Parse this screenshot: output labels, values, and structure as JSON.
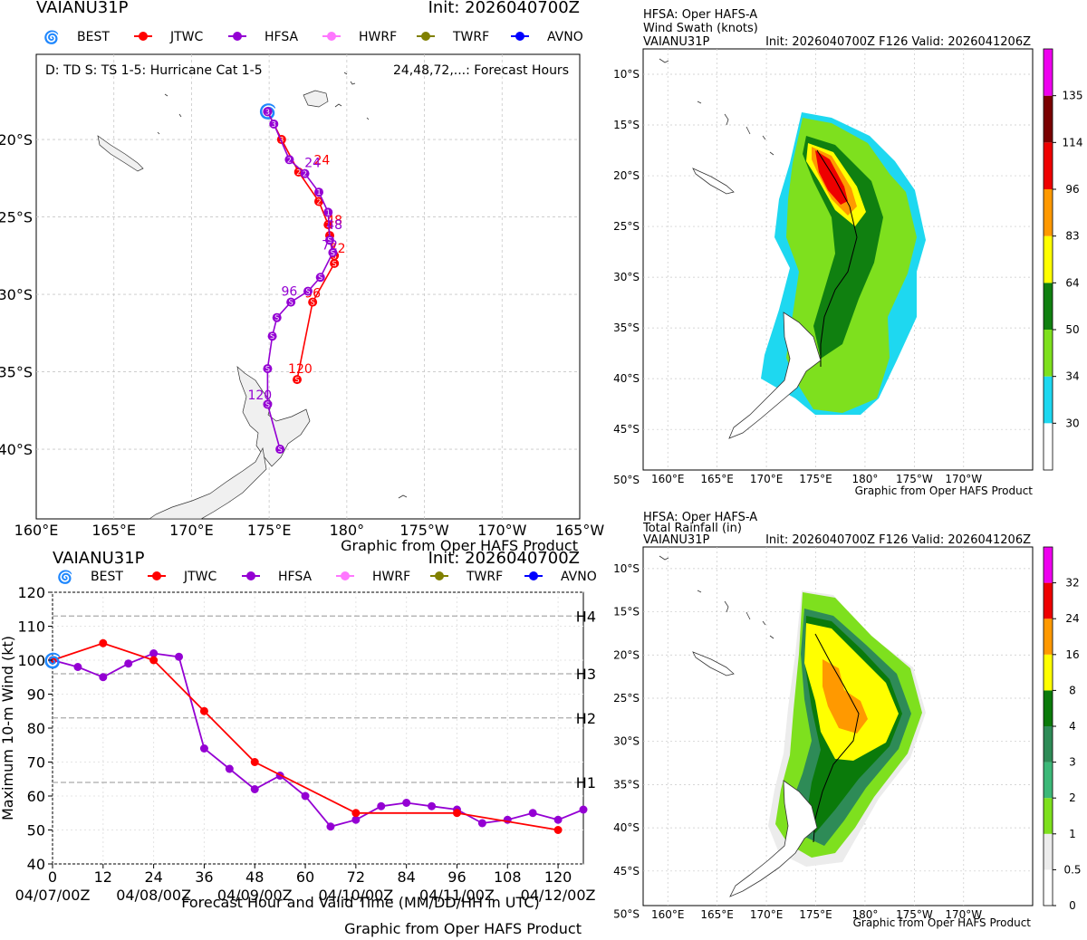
{
  "colors": {
    "BEST": "#000000",
    "JTWC": "#ff0000",
    "HFSA": "#9400d3",
    "HWRF": "#ff77ff",
    "TWRF": "#808000",
    "AVNO": "#0000ff",
    "land": "#f0f0f0",
    "grid": "#c8c8c8"
  },
  "legend_models": [
    "BEST",
    "JTWC",
    "HFSA",
    "HWRF",
    "TWRF",
    "AVNO"
  ],
  "track_panel": {
    "storm": "VAIANU31P",
    "init": "Init: 2026040700Z",
    "key_left": "D: TD  S: TS  1-5: Hurricane Cat 1-5",
    "key_right": "24,48,72,...: Forecast Hours",
    "credit": "Graphic from Oper HAFS Product",
    "lon_ticks": [
      "160°E",
      "165°E",
      "170°E",
      "175°E",
      "180°",
      "175°W",
      "170°W",
      "165°W"
    ],
    "lat_ticks": [
      "20°S",
      "25°S",
      "30°S",
      "35°S",
      "40°S"
    ]
  },
  "intensity_panel": {
    "storm": "VAIANU31P",
    "init": "Init: 2026040700Z",
    "ylabel": "Maximum 10-m Wind (kt)",
    "xlabel": "Forecast Hour and Valid Time (MM/DD/HH in UTC)",
    "credit": "Graphic from Oper HAFS Product",
    "date_labels": [
      "04/07/00Z",
      "04/08/00Z",
      "04/09/00Z",
      "04/10/00Z",
      "04/11/00Z",
      "04/12/00Z"
    ],
    "cat_labels": [
      "H1",
      "H2",
      "H3",
      "H4"
    ]
  },
  "swath_panel": {
    "line1": "HFSA: Oper HAFS-A",
    "line2": "Wind Swath (knots)",
    "storm": "VAIANU31P",
    "init": "Init: 2026040700Z F126 Valid: 2026041206Z",
    "credit": "Graphic from Oper HAFS Product",
    "lon_ticks": [
      "160°E",
      "165°E",
      "170°E",
      "175°E",
      "180°",
      "175°W",
      "170°W"
    ],
    "lat_ticks": [
      "10°S",
      "15°S",
      "20°S",
      "25°S",
      "30°S",
      "35°S",
      "40°S",
      "45°S",
      "50°S"
    ],
    "colorbar_labels": [
      "30",
      "34",
      "50",
      "64",
      "83",
      "96",
      "114",
      "135"
    ]
  },
  "rain_panel": {
    "line1": "HFSA: Oper HAFS-A",
    "line2": "Total Rainfall (in)",
    "storm": "VAIANU31P",
    "init": "Init: 2026040700Z F126 Valid: 2026041206Z",
    "credit": "Graphic from Oper HAFS Product",
    "lon_ticks": [
      "160°E",
      "165°E",
      "170°E",
      "175°E",
      "180°",
      "175°W",
      "170°W"
    ],
    "lat_ticks": [
      "10°S",
      "15°S",
      "20°S",
      "25°S",
      "30°S",
      "35°S",
      "40°S",
      "45°S",
      "50°S"
    ],
    "colorbar_labels": [
      "0",
      "0.5",
      "1",
      "2",
      "3",
      "4",
      "8",
      "16",
      "24",
      "32"
    ]
  },
  "chart_data": [
    {
      "type": "map-track",
      "title": "VAIANU31P",
      "subtitle": "Init: 2026040700Z",
      "xlim_lon_east": [
        160,
        195
      ],
      "ylim_lat": [
        -44.5,
        -14.5
      ],
      "series": [
        {
          "name": "BEST",
          "points": [
            [
              174.9,
              -18.2,
              "hurricane-symbol"
            ]
          ]
        },
        {
          "name": "JTWC",
          "points": [
            [
              174.9,
              -18.2,
              "3"
            ],
            [
              175.8,
              -20.0,
              "3"
            ],
            [
              176.9,
              -22.1,
              "2"
            ],
            [
              178.2,
              -24.0,
              "2"
            ],
            [
              178.8,
              -25.5,
              "1"
            ],
            [
              178.9,
              -26.2,
              "1"
            ],
            [
              179.2,
              -27.5,
              "S"
            ],
            [
              179.2,
              -28.0,
              "S"
            ],
            [
              177.8,
              -30.5,
              "S"
            ],
            [
              176.8,
              -35.5,
              "S"
            ]
          ],
          "hour_labels": [
            {
              "lon": 178.4,
              "lat": -21.3,
              "text": "24"
            },
            {
              "lon": 179.2,
              "lat": -25.2,
              "text": "48"
            },
            {
              "lon": 179.4,
              "lat": -27.0,
              "text": "72"
            },
            {
              "lon": 177.8,
              "lat": -29.9,
              "text": "96"
            },
            {
              "lon": 177.0,
              "lat": -34.8,
              "text": "120"
            }
          ]
        },
        {
          "name": "HFSA",
          "points": [
            [
              174.9,
              -18.2,
              "3"
            ],
            [
              175.3,
              -19.0,
              "3"
            ],
            [
              176.3,
              -21.3,
              "2"
            ],
            [
              177.3,
              -22.2,
              "2"
            ],
            [
              178.2,
              -23.4,
              "1"
            ],
            [
              178.8,
              -24.7,
              "1"
            ],
            [
              178.9,
              -26.5,
              "S"
            ],
            [
              179.1,
              -27.3,
              "S"
            ],
            [
              178.3,
              -28.9,
              "S"
            ],
            [
              177.5,
              -29.8,
              "S"
            ],
            [
              176.4,
              -30.5,
              "S"
            ],
            [
              175.5,
              -31.5,
              "S"
            ],
            [
              175.2,
              -32.7,
              "S"
            ],
            [
              174.9,
              -34.8,
              "S"
            ],
            [
              174.9,
              -37.1,
              "S"
            ],
            [
              175.7,
              -40.0,
              "S"
            ]
          ],
          "hour_labels": [
            {
              "lon": 177.8,
              "lat": -21.5,
              "text": "24"
            },
            {
              "lon": 179.2,
              "lat": -25.5,
              "text": "48"
            },
            {
              "lon": 178.9,
              "lat": -26.8,
              "text": "72"
            },
            {
              "lon": 176.3,
              "lat": -29.8,
              "text": "96"
            },
            {
              "lon": 174.4,
              "lat": -36.5,
              "text": "120"
            }
          ]
        }
      ]
    },
    {
      "type": "line",
      "title": "VAIANU31P",
      "subtitle": "Init: 2026040700Z",
      "xlabel": "Forecast Hour and Valid Time (MM/DD/HH in UTC)",
      "ylabel": "Maximum 10-m Wind (kt)",
      "xlim": [
        0,
        126
      ],
      "ylim": [
        40,
        120
      ],
      "xticks": [
        0,
        12,
        24,
        36,
        48,
        60,
        72,
        84,
        96,
        108,
        120
      ],
      "yticks": [
        40,
        50,
        60,
        70,
        80,
        90,
        100,
        110,
        120
      ],
      "category_lines": [
        {
          "label": "H1",
          "value": 64
        },
        {
          "label": "H2",
          "value": 83
        },
        {
          "label": "H3",
          "value": 96
        },
        {
          "label": "H4",
          "value": 113
        }
      ],
      "series": [
        {
          "name": "BEST",
          "x": [
            0
          ],
          "y": [
            100
          ]
        },
        {
          "name": "JTWC",
          "x": [
            0,
            12,
            24,
            36,
            48,
            72,
            96,
            120
          ],
          "y": [
            100,
            105,
            100,
            85,
            70,
            55,
            55,
            50
          ]
        },
        {
          "name": "HFSA",
          "x": [
            0,
            6,
            12,
            18,
            24,
            30,
            36,
            42,
            48,
            54,
            60,
            66,
            72,
            78,
            84,
            90,
            96,
            102,
            108,
            114,
            120,
            126
          ],
          "y": [
            100,
            98,
            95,
            99,
            102,
            101,
            74,
            68,
            62,
            66,
            60,
            51,
            53,
            57,
            58,
            57,
            56,
            52,
            53,
            55,
            53,
            56
          ]
        }
      ]
    },
    {
      "type": "heatmap",
      "title": "HFSA: Oper HAFS-A Wind Swath (knots)",
      "subtitle": "VAIANU31P Init: 2026040700Z F126 Valid: 2026041206Z",
      "levels": [
        30,
        34,
        50,
        64,
        83,
        96,
        114,
        135
      ],
      "level_colors": [
        "#ffffff",
        "#1ed8f0",
        "#7ee01e",
        "#108010",
        "#ffff00",
        "#ff9900",
        "#ee0000",
        "#7a0000",
        "#ee00ee"
      ]
    },
    {
      "type": "heatmap",
      "title": "HFSA: Oper HAFS-A Total Rainfall (in)",
      "subtitle": "VAIANU31P Init: 2026040700Z F126 Valid: 2026041206Z",
      "levels": [
        0,
        0.5,
        1,
        2,
        3,
        4,
        8,
        16,
        24,
        32
      ],
      "level_colors": [
        "#ffffff",
        "#ececec",
        "#7ee01e",
        "#3cb878",
        "#2e8b57",
        "#0a7a0a",
        "#ffff00",
        "#ff9900",
        "#ee0000",
        "#ee00ee"
      ]
    }
  ]
}
